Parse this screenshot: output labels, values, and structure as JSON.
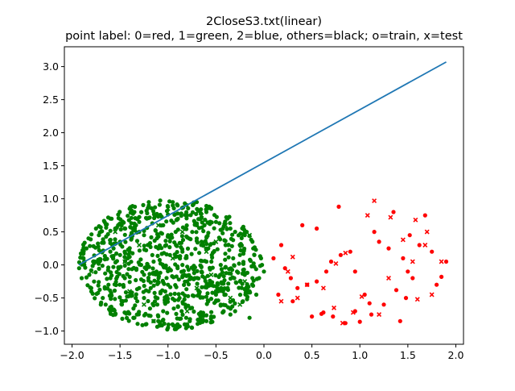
{
  "chart_data": {
    "type": "scatter",
    "title": "2CloseS3.txt(linear)",
    "subtitle": "point label: 0=red, 1=green, 2=blue, others=black; o=train, x=test",
    "xlabel": "",
    "ylabel": "",
    "xlim": [
      -2.08,
      2.08
    ],
    "ylim": [
      -1.2,
      3.3
    ],
    "x_ticks": [
      -2.0,
      -1.5,
      -1.0,
      -0.5,
      0.0,
      0.5,
      1.0,
      1.5,
      2.0
    ],
    "x_tick_labels": [
      "−2.0",
      "−1.5",
      "−1.0",
      "−0.5",
      "0.0",
      "0.5",
      "1.0",
      "1.5",
      "2.0"
    ],
    "y_ticks": [
      -1.0,
      -0.5,
      0.0,
      0.5,
      1.0,
      1.5,
      2.0,
      2.5,
      3.0
    ],
    "y_tick_labels": [
      "−1.0",
      "−0.5",
      "0.0",
      "0.5",
      "1.0",
      "1.5",
      "2.0",
      "2.5",
      "3.0"
    ],
    "grid": false,
    "colors": {
      "line": "#1f77b4",
      "label_0": "#ff0000",
      "label_1": "#008000"
    },
    "line": {
      "x": [
        -1.93,
        1.9
      ],
      "y": [
        0.0,
        3.07
      ]
    },
    "series": [
      {
        "label": 1,
        "color": "#008000",
        "marker": "o",
        "x": [
          -1.85,
          -1.8,
          -1.75,
          -1.7,
          -1.65,
          -1.6,
          -1.55,
          -1.5,
          -1.45,
          -1.4,
          -1.35,
          -1.3,
          -1.25,
          -1.2,
          -1.15,
          -1.1,
          -1.05,
          -1.0,
          -0.95,
          -0.9,
          -0.85,
          -0.8,
          -0.75,
          -0.7,
          -0.65,
          -0.6,
          -0.55,
          -0.5,
          -0.45,
          -0.4,
          -0.35,
          -0.3,
          -0.25,
          -0.2,
          -0.15,
          -0.1,
          -0.05,
          -1.82,
          -1.72,
          -1.62,
          -1.52,
          -1.42,
          -1.32,
          -1.22,
          -1.12,
          -1.02,
          -0.92,
          -0.82,
          -0.72,
          -0.62,
          -0.52,
          -0.42,
          -0.32,
          -0.22,
          -0.12,
          -1.78,
          -1.68,
          -1.58,
          -1.48,
          -1.38,
          -1.28,
          -1.18,
          -1.08,
          -0.98,
          -0.88,
          -0.78,
          -0.68,
          -0.58,
          -0.48,
          -0.38,
          -0.28,
          -0.18,
          -0.08,
          -1.6,
          -1.4,
          -1.2,
          -1.0,
          -0.8,
          -0.6,
          -0.4,
          -0.2,
          -1.5,
          -1.3,
          -1.1,
          -0.9,
          -0.7,
          -0.5,
          -0.3,
          -1.45,
          -1.25,
          -1.05,
          -0.85,
          -0.65,
          -0.45,
          -0.25,
          -1.65,
          -1.35,
          -1.15,
          -0.95,
          -0.75,
          -0.55,
          -0.35,
          -0.15,
          -1.88,
          -1.9,
          -1.87,
          -0.02,
          0.0,
          -0.03,
          -1.2,
          -1.0,
          -0.8,
          -1.1,
          -0.9,
          -0.7,
          -1.3,
          -0.6,
          -1.55,
          -0.5
        ],
        "y": [
          0.25,
          -0.35,
          0.55,
          -0.6,
          0.1,
          0.7,
          -0.75,
          0.35,
          -0.2,
          0.85,
          -0.8,
          0.5,
          -0.5,
          0.9,
          0.05,
          -0.85,
          0.6,
          -0.3,
          0.95,
          -0.9,
          0.2,
          0.75,
          -0.65,
          0.4,
          -0.1,
          0.8,
          -0.78,
          0.65,
          0.0,
          -0.45,
          0.55,
          -0.7,
          0.3,
          0.45,
          -0.4,
          0.15,
          -0.2,
          -0.15,
          0.45,
          -0.3,
          0.6,
          0.1,
          -0.55,
          0.7,
          -0.1,
          0.3,
          0.5,
          -0.6,
          -0.2,
          0.6,
          0.2,
          -0.7,
          0.1,
          -0.55,
          0.35,
          0.05,
          -0.5,
          0.3,
          -0.6,
          0.4,
          0.0,
          -0.35,
          0.75,
          0.15,
          -0.5,
          0.4,
          -0.4,
          0.25,
          -0.3,
          0.7,
          -0.1,
          0.5,
          -0.45,
          -0.2,
          0.2,
          -0.4,
          0.45,
          -0.25,
          0.05,
          0.3,
          -0.15,
          0.15,
          -0.35,
          0.25,
          -0.05,
          0.6,
          -0.55,
          0.5,
          0.55,
          0.45,
          -0.7,
          0.0,
          0.35,
          -0.6,
          0.15,
          -0.6,
          0.8,
          -0.85,
          0.9,
          -0.95,
          0.85,
          -0.75,
          -0.8,
          0.1,
          -0.2,
          0.05,
          0.0,
          -0.1,
          0.1,
          0.95,
          -0.95,
          -0.9,
          -0.85,
          0.9,
          0.95,
          0.65,
          -0.85,
          0.55,
          -0.45
        ],
        "n_visible_points": 900,
        "region": {
          "shape": "ellipse",
          "center": [
            -0.98,
            0.0
          ],
          "radius_x": 0.95,
          "radius_y": 0.98
        }
      },
      {
        "label": 1,
        "color": "#008000",
        "marker": "x",
        "x": [
          -1.7,
          -1.4,
          -1.1,
          -0.8,
          -0.5,
          -0.2,
          -1.55,
          -1.25,
          -0.95,
          -0.65,
          -0.35,
          -1.8,
          -1.6,
          -1.3,
          -1.0,
          -0.7,
          -0.4,
          -0.15,
          -1.45,
          -1.15,
          -0.85,
          -0.55,
          -0.25,
          -1.0,
          -0.6
        ],
        "y": [
          0.2,
          -0.4,
          0.6,
          -0.7,
          0.35,
          -0.25,
          0.5,
          -0.6,
          0.1,
          0.75,
          -0.5,
          -0.1,
          -0.65,
          0.3,
          0.85,
          -0.35,
          0.6,
          0.45,
          0.05,
          -0.85,
          0.5,
          -0.15,
          -0.6,
          -0.05,
          0.2
        ]
      },
      {
        "label": 0,
        "color": "#ff0000",
        "marker": "o",
        "x": [
          0.78,
          0.55,
          1.52,
          1.68,
          1.48,
          1.8,
          1.42,
          1.1,
          0.95,
          0.62,
          0.18,
          0.28,
          0.15,
          0.1,
          0.22,
          0.35,
          0.5,
          0.6,
          0.72,
          0.85,
          1.0,
          1.12,
          1.25,
          1.38,
          1.5,
          1.62,
          1.75,
          1.85,
          1.9,
          0.45,
          0.65,
          0.8,
          0.9,
          1.05,
          1.2,
          1.3,
          1.45,
          1.55,
          0.3,
          0.4,
          0.7,
          1.15,
          1.35,
          0.55,
          0.95
        ],
        "y": [
          0.88,
          0.55,
          0.45,
          0.75,
          -0.5,
          -0.3,
          -0.85,
          -0.58,
          -0.7,
          -0.72,
          0.3,
          -0.2,
          -0.45,
          0.1,
          -0.05,
          -0.35,
          -0.78,
          -0.74,
          -0.78,
          -0.88,
          -0.86,
          -0.75,
          -0.6,
          -0.38,
          -0.1,
          0.3,
          0.2,
          -0.18,
          0.05,
          -0.3,
          -0.1,
          0.15,
          0.2,
          -0.45,
          0.35,
          0.25,
          0.1,
          -0.2,
          -0.55,
          0.6,
          0.05,
          0.5,
          0.8,
          -0.25,
          -0.1
        ]
      },
      {
        "label": 0,
        "color": "#ff0000",
        "marker": "x",
        "x": [
          1.15,
          1.08,
          1.32,
          1.58,
          1.7,
          1.68,
          1.85,
          1.75,
          1.6,
          1.2,
          0.93,
          0.82,
          0.73,
          0.35,
          0.18,
          0.45,
          0.62,
          1.02,
          1.3,
          1.55,
          0.3,
          0.85,
          1.45,
          0.75,
          0.25
        ],
        "y": [
          0.97,
          0.75,
          0.72,
          0.68,
          0.5,
          0.3,
          0.05,
          -0.45,
          -0.52,
          -0.75,
          -0.72,
          -0.88,
          -0.65,
          -0.5,
          -0.55,
          -0.3,
          -0.35,
          -0.48,
          -0.2,
          0.05,
          0.12,
          0.18,
          0.38,
          0.02,
          -0.1
        ]
      }
    ]
  }
}
